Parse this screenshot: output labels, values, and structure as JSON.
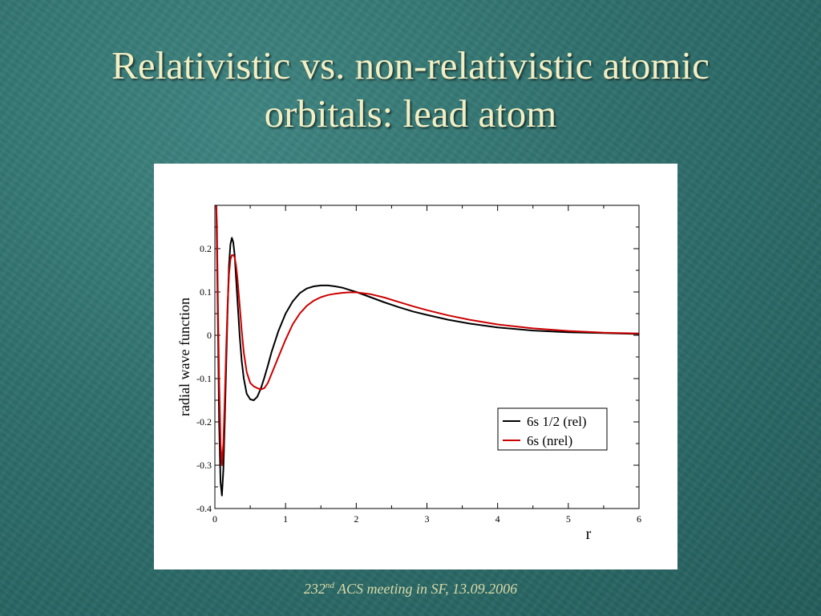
{
  "slide": {
    "title_line1": "Relativistic vs. non-relativistic atomic",
    "title_line2": "orbitals: lead atom",
    "footer_number": "232",
    "footer_sup": "nd",
    "footer_rest": " ACS meeting in SF, 13.09.2006"
  },
  "chart_data": {
    "type": "line",
    "xlabel": "r",
    "ylabel": "radial wave function",
    "xlim": [
      0,
      6
    ],
    "ylim": [
      -0.4,
      0.3
    ],
    "xticks": [
      0,
      1,
      2,
      3,
      4,
      5,
      6
    ],
    "xtick_labels": [
      "0",
      "1",
      "2",
      "3",
      "4",
      "5",
      "6"
    ],
    "yticks": [
      -0.4,
      -0.3,
      -0.2,
      -0.1,
      0,
      0.1,
      0.2
    ],
    "ytick_labels": [
      "-0.4",
      "-0.3",
      "-0.2",
      "-0.1",
      "0",
      "0.1",
      "0.2"
    ],
    "grid": false,
    "legend_position": "lower-right",
    "series": [
      {
        "name": "6s 1/2 (rel)",
        "color": "#000000",
        "x": [
          0,
          0.01,
          0.02,
          0.03,
          0.045,
          0.06,
          0.08,
          0.1,
          0.12,
          0.14,
          0.16,
          0.18,
          0.2,
          0.22,
          0.24,
          0.26,
          0.28,
          0.3,
          0.32,
          0.35,
          0.38,
          0.41,
          0.45,
          0.5,
          0.55,
          0.6,
          0.65,
          0.7,
          0.75,
          0.8,
          0.9,
          1.0,
          1.1,
          1.2,
          1.3,
          1.4,
          1.5,
          1.6,
          1.7,
          1.8,
          1.9,
          2.0,
          2.2,
          2.4,
          2.6,
          2.8,
          3.0,
          3.3,
          3.6,
          4.0,
          4.5,
          5.0,
          5.5,
          6.0
        ],
        "y": [
          0.3,
          0.3,
          0.3,
          0.2,
          0.0,
          -0.2,
          -0.34,
          -0.37,
          -0.31,
          -0.2,
          -0.07,
          0.06,
          0.16,
          0.21,
          0.225,
          0.215,
          0.185,
          0.13,
          0.08,
          0.0,
          -0.06,
          -0.1,
          -0.135,
          -0.148,
          -0.15,
          -0.142,
          -0.123,
          -0.098,
          -0.07,
          -0.04,
          0.01,
          0.05,
          0.078,
          0.097,
          0.108,
          0.113,
          0.115,
          0.115,
          0.113,
          0.11,
          0.105,
          0.1,
          0.088,
          0.076,
          0.065,
          0.055,
          0.047,
          0.036,
          0.027,
          0.018,
          0.011,
          0.007,
          0.005,
          0.003
        ]
      },
      {
        "name": "6s (nrel)",
        "color": "#cc0000",
        "x": [
          0,
          0.01,
          0.02,
          0.03,
          0.045,
          0.06,
          0.08,
          0.1,
          0.12,
          0.14,
          0.16,
          0.18,
          0.2,
          0.22,
          0.24,
          0.26,
          0.28,
          0.3,
          0.32,
          0.35,
          0.38,
          0.41,
          0.45,
          0.5,
          0.55,
          0.6,
          0.65,
          0.7,
          0.75,
          0.8,
          0.9,
          1.0,
          1.1,
          1.2,
          1.3,
          1.4,
          1.5,
          1.6,
          1.7,
          1.8,
          1.9,
          2.0,
          2.2,
          2.4,
          2.6,
          2.8,
          3.0,
          3.3,
          3.6,
          4.0,
          4.5,
          5.0,
          5.5,
          6.0
        ],
        "y": [
          0.3,
          0.3,
          0.3,
          0.25,
          0.05,
          -0.1,
          -0.25,
          -0.3,
          -0.25,
          -0.15,
          -0.03,
          0.07,
          0.14,
          0.175,
          0.185,
          0.185,
          0.18,
          0.16,
          0.13,
          0.07,
          0.01,
          -0.04,
          -0.085,
          -0.11,
          -0.118,
          -0.122,
          -0.125,
          -0.122,
          -0.11,
          -0.09,
          -0.05,
          -0.01,
          0.025,
          0.05,
          0.068,
          0.08,
          0.088,
          0.093,
          0.096,
          0.098,
          0.099,
          0.099,
          0.095,
          0.087,
          0.077,
          0.067,
          0.058,
          0.046,
          0.036,
          0.025,
          0.016,
          0.01,
          0.006,
          0.004
        ]
      }
    ]
  }
}
